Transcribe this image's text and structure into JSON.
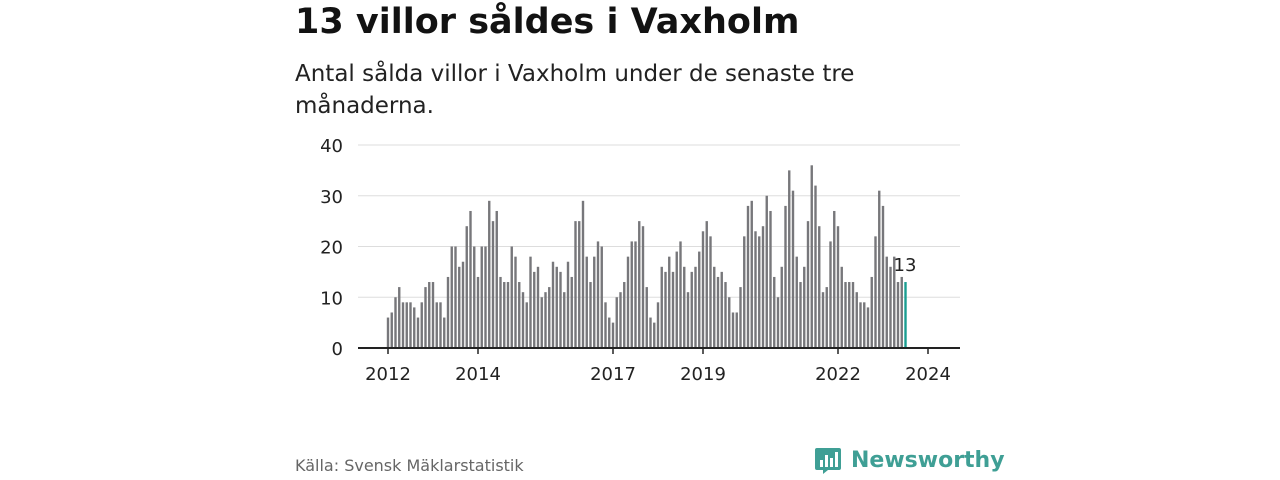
{
  "title": "13 villor såldes i Vaxholm",
  "subtitle": "Antal sålda villor i Vaxholm under de senaste tre månaderna.",
  "source": "Källa: Svensk Mäklarstatistik",
  "brand": {
    "name": "Newsworthy",
    "icon": "newsworthy-logo-icon"
  },
  "colors": {
    "bar": "#77777b",
    "highlight": "#1a9e91",
    "grid": "#dddddd",
    "axis": "#222222",
    "brand": "#3f9f95"
  },
  "chart_data": {
    "type": "bar",
    "title": "13 villor såldes i Vaxholm",
    "xlabel": "",
    "ylabel": "",
    "ylim": [
      0,
      40
    ],
    "yticks": [
      0,
      10,
      20,
      30,
      40
    ],
    "xticks": [
      {
        "label": "2012",
        "index": 0
      },
      {
        "label": "2014",
        "index": 24
      },
      {
        "label": "2017",
        "index": 60
      },
      {
        "label": "2019",
        "index": 84
      },
      {
        "label": "2022",
        "index": 120
      },
      {
        "label": "2024",
        "index": 144
      }
    ],
    "grid": true,
    "start": "2012-01",
    "highlight_label": "13",
    "values": [
      6,
      7,
      10,
      12,
      9,
      9,
      9,
      8,
      6,
      9,
      12,
      13,
      13,
      9,
      9,
      6,
      14,
      20,
      20,
      16,
      17,
      24,
      27,
      20,
      14,
      20,
      20,
      29,
      25,
      27,
      14,
      13,
      13,
      20,
      18,
      13,
      11,
      9,
      18,
      15,
      16,
      10,
      11,
      12,
      17,
      16,
      15,
      11,
      17,
      14,
      25,
      25,
      29,
      18,
      13,
      18,
      21,
      20,
      9,
      6,
      5,
      10,
      11,
      13,
      18,
      21,
      21,
      25,
      24,
      12,
      6,
      5,
      9,
      16,
      15,
      18,
      15,
      19,
      21,
      16,
      11,
      15,
      16,
      19,
      23,
      25,
      22,
      16,
      14,
      15,
      13,
      10,
      7,
      7,
      12,
      22,
      28,
      29,
      23,
      22,
      24,
      30,
      27,
      14,
      10,
      16,
      28,
      35,
      31,
      18,
      13,
      16,
      25,
      36,
      32,
      24,
      11,
      12,
      21,
      27,
      24,
      16,
      13,
      13,
      13,
      11,
      9,
      9,
      8,
      14,
      22,
      31,
      28,
      18,
      16,
      18,
      13,
      14,
      13
    ]
  }
}
